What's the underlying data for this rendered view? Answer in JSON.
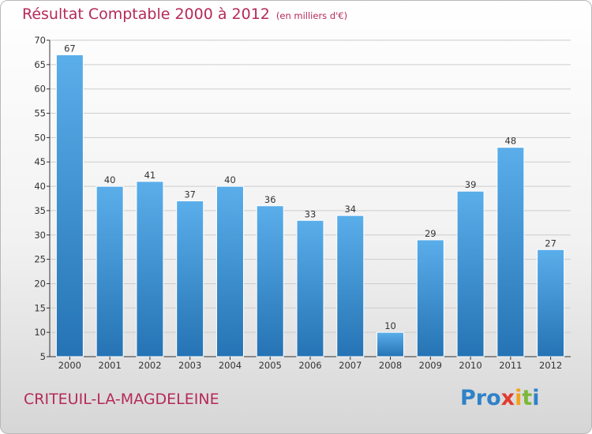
{
  "title": "Résultat Comptable 2000 à 2012",
  "subtitle": "(en milliers d'€)",
  "place": "CRITEUIL-LA-MAGDELEINE",
  "logo": {
    "parts": [
      "Pro",
      "x",
      "i",
      "t",
      "i"
    ],
    "colors": [
      "#2f82c8",
      "#e23a2e",
      "#f2a31b",
      "#7cb83a",
      "#2f82c8"
    ]
  },
  "colors": {
    "title": "#b6295a",
    "bar_top": "#5aaeea",
    "bar_bottom": "#2573b4",
    "grid": "#cccccc"
  },
  "chart_data": {
    "type": "bar",
    "categories": [
      "2000",
      "2001",
      "2002",
      "2003",
      "2004",
      "2005",
      "2006",
      "2007",
      "2008",
      "2009",
      "2010",
      "2011",
      "2012"
    ],
    "values": [
      67,
      40,
      41,
      37,
      40,
      36,
      33,
      34,
      10,
      29,
      39,
      48,
      27
    ],
    "data_labels": [
      "67",
      "40",
      "41",
      "37",
      "40",
      "36",
      "33",
      "34",
      "10",
      "29",
      "39",
      "48",
      "27"
    ],
    "yticks": [
      "5",
      "10",
      "15",
      "20",
      "25",
      "30",
      "35",
      "40",
      "45",
      "50",
      "55",
      "60",
      "65",
      "70"
    ],
    "ylim": [
      5,
      70
    ],
    "grid": true,
    "legend": "none"
  }
}
